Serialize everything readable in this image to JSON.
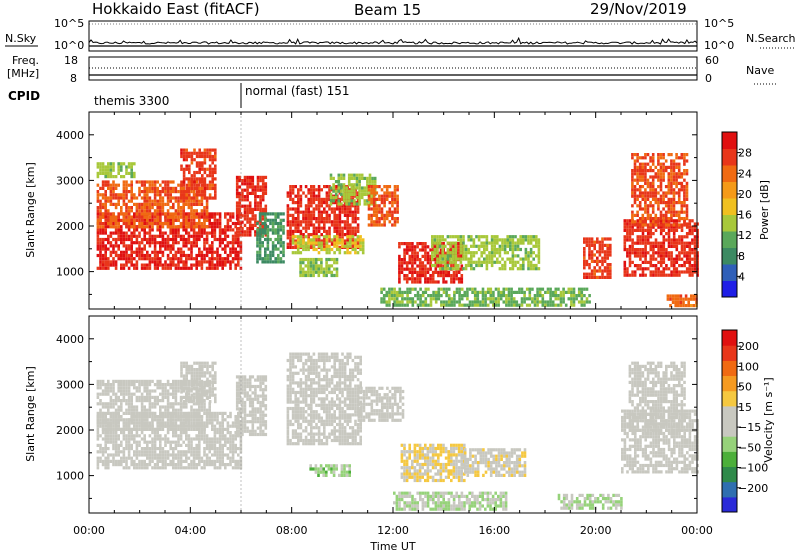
{
  "header": {
    "station": "Hokkaido East (fitACF)",
    "beam": "Beam 15",
    "date": "29/Nov/2019"
  },
  "side_labels": {
    "nsky": "N.Sky",
    "nsearch": "N.Search",
    "freq": "Freq.",
    "freq_unit": "[MHz]",
    "nave": "Nave",
    "cpid": "CPID"
  },
  "xaxis": {
    "title": "Time UT",
    "ticks": [
      "00:00",
      "04:00",
      "08:00",
      "12:00",
      "16:00",
      "20:00",
      "00:00"
    ]
  },
  "noise_axis": {
    "left": [
      "10^5",
      "10^0"
    ],
    "right": [
      "10^5",
      "10^0"
    ]
  },
  "freq_axis": {
    "left": [
      "18",
      "8"
    ],
    "right": [
      "60",
      "0"
    ]
  },
  "cpid": [
    {
      "label": "themis 3300",
      "start_hr": 0,
      "end_hr": 6
    },
    {
      "label": "normal (fast) 151",
      "start_hr": 6,
      "end_hr": 24
    }
  ],
  "colors": {
    "background": "#ffffff",
    "axis": "#000000",
    "power": [
      "#1f1fe6",
      "#2f5fb8",
      "#3c8a62",
      "#5aa85a",
      "#a8c83a",
      "#f0c020",
      "#f59a18",
      "#f06a12",
      "#e8361a",
      "#e01010"
    ],
    "velocity": [
      "#2a2ad8",
      "#2f6fb0",
      "#2f8a4a",
      "#4caf3a",
      "#96d27a",
      "#c8c8c0",
      "#c8c8c0",
      "#f5c840",
      "#f59a20",
      "#f06a12",
      "#e8361a",
      "#e01010"
    ]
  },
  "chart_data": [
    {
      "type": "heatmap",
      "panel": "power",
      "ylabel": "Slant Range [km]",
      "xlabel": "Time UT",
      "xlim_hours": [
        0,
        24
      ],
      "ylim_km": [
        180,
        4500
      ],
      "yticks": [
        "1000",
        "2000",
        "3000",
        "4000"
      ],
      "colorbar": {
        "label": "Power [dB]",
        "range": [
          0,
          32
        ],
        "ticks": [
          "4",
          "8",
          "12",
          "16",
          "20",
          "24",
          "28"
        ]
      },
      "regions": [
        {
          "t0": 0.3,
          "t1": 6.0,
          "r0": 1050,
          "r1": 2300,
          "v": 29
        },
        {
          "t0": 0.3,
          "t1": 4.7,
          "r0": 2000,
          "r1": 3000,
          "v": 25
        },
        {
          "t0": 3.6,
          "t1": 5.0,
          "r0": 2600,
          "r1": 3700,
          "v": 27
        },
        {
          "t0": 0.3,
          "t1": 1.8,
          "r0": 3050,
          "r1": 3400,
          "v": 14
        },
        {
          "t0": 5.8,
          "t1": 7.0,
          "r0": 1800,
          "r1": 3100,
          "v": 28
        },
        {
          "t0": 6.6,
          "t1": 7.7,
          "r0": 1200,
          "r1": 2300,
          "v": 9
        },
        {
          "t0": 7.8,
          "t1": 10.6,
          "r0": 1550,
          "r1": 2900,
          "v": 28
        },
        {
          "t0": 8.0,
          "t1": 10.8,
          "r0": 1400,
          "r1": 1800,
          "v": 16
        },
        {
          "t0": 9.5,
          "t1": 11.3,
          "r0": 2450,
          "r1": 3150,
          "v": 14
        },
        {
          "t0": 11.0,
          "t1": 12.2,
          "r0": 2050,
          "r1": 2900,
          "v": 25
        },
        {
          "t0": 8.3,
          "t1": 9.8,
          "r0": 900,
          "r1": 1300,
          "v": 14
        },
        {
          "t0": 12.2,
          "t1": 14.7,
          "r0": 750,
          "r1": 1650,
          "v": 29
        },
        {
          "t0": 13.5,
          "t1": 17.8,
          "r0": 1050,
          "r1": 1800,
          "v": 14
        },
        {
          "t0": 11.5,
          "t1": 19.8,
          "r0": 250,
          "r1": 650,
          "v": 12
        },
        {
          "t0": 19.5,
          "t1": 20.6,
          "r0": 900,
          "r1": 1750,
          "v": 27
        },
        {
          "t0": 21.1,
          "t1": 24.0,
          "r0": 900,
          "r1": 2150,
          "v": 28
        },
        {
          "t0": 21.4,
          "t1": 23.6,
          "r0": 2000,
          "r1": 3600,
          "v": 26
        },
        {
          "t0": 22.8,
          "t1": 24.0,
          "r0": 250,
          "r1": 500,
          "v": 24
        }
      ]
    },
    {
      "type": "heatmap",
      "panel": "velocity",
      "ylabel": "Slant Range [km]",
      "xlabel": "Time UT",
      "xlim_hours": [
        0,
        24
      ],
      "ylim_km": [
        180,
        4500
      ],
      "yticks": [
        "1000",
        "2000",
        "3000",
        "4000"
      ],
      "colorbar": {
        "label": "Velocity [m s⁻¹]",
        "range": [
          -250,
          250
        ],
        "ticks": [
          "200",
          "100",
          "50",
          "15",
          "−15",
          "−50",
          "−100",
          "−200"
        ]
      },
      "regions": [
        {
          "t0": 0.3,
          "t1": 6.0,
          "r0": 1150,
          "r1": 2400,
          "v": 0
        },
        {
          "t0": 0.3,
          "t1": 4.8,
          "r0": 2000,
          "r1": 3100,
          "v": 0
        },
        {
          "t0": 3.6,
          "t1": 5.0,
          "r0": 2600,
          "r1": 3500,
          "v": 0
        },
        {
          "t0": 5.8,
          "t1": 7.0,
          "r0": 1900,
          "r1": 3200,
          "v": 0
        },
        {
          "t0": 7.8,
          "t1": 10.7,
          "r0": 1700,
          "r1": 3700,
          "v": 0
        },
        {
          "t0": 10.6,
          "t1": 12.4,
          "r0": 2200,
          "r1": 2950,
          "v": 0
        },
        {
          "t0": 8.7,
          "t1": 10.3,
          "r0": 1000,
          "r1": 1250,
          "v": -60
        },
        {
          "t0": 12.3,
          "t1": 14.8,
          "r0": 900,
          "r1": 1700,
          "v": 40
        },
        {
          "t0": 14.8,
          "t1": 17.2,
          "r0": 1000,
          "r1": 1600,
          "v": 25
        },
        {
          "t0": 12.0,
          "t1": 16.5,
          "r0": 250,
          "r1": 650,
          "v": -40
        },
        {
          "t0": 18.5,
          "t1": 21.0,
          "r0": 250,
          "r1": 600,
          "v": -45
        },
        {
          "t0": 21.0,
          "t1": 24.0,
          "r0": 1100,
          "r1": 2450,
          "v": 0
        },
        {
          "t0": 21.3,
          "t1": 23.5,
          "r0": 2000,
          "r1": 3500,
          "v": 0
        }
      ]
    }
  ]
}
